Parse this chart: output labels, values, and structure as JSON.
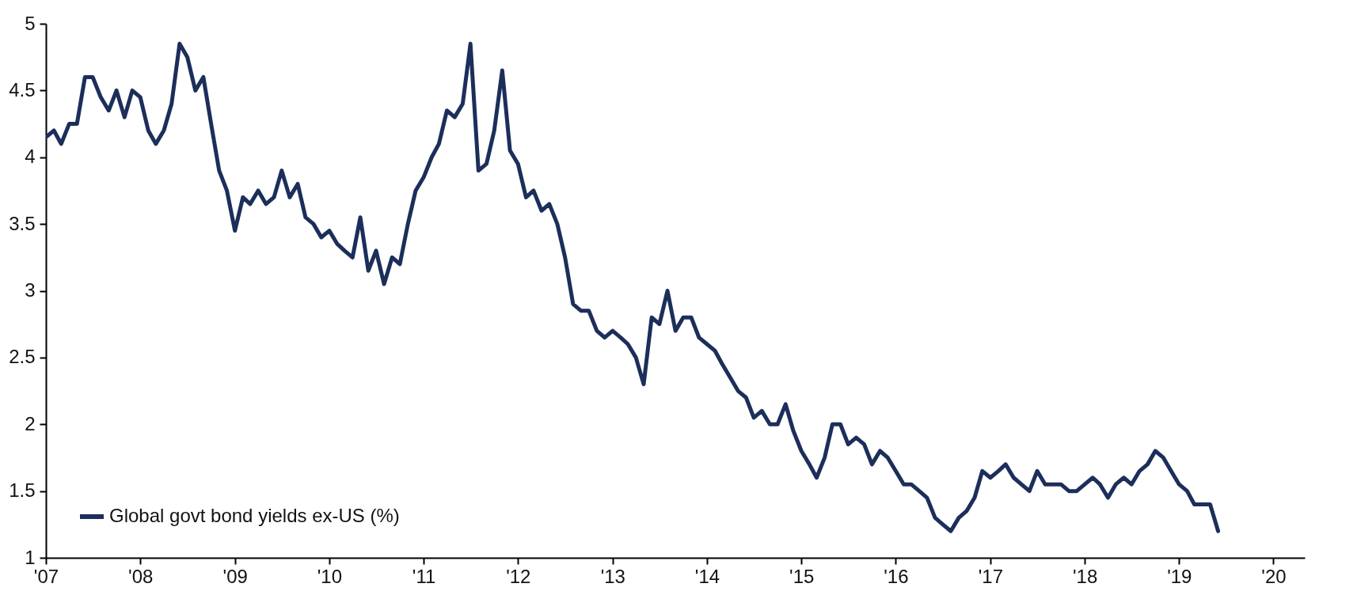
{
  "chart_data": {
    "type": "line",
    "x": [
      "2007-01",
      "2007-02",
      "2007-03",
      "2007-04",
      "2007-05",
      "2007-06",
      "2007-07",
      "2007-08",
      "2007-09",
      "2007-10",
      "2007-11",
      "2007-12",
      "2008-01",
      "2008-02",
      "2008-03",
      "2008-04",
      "2008-05",
      "2008-06",
      "2008-07",
      "2008-08",
      "2008-09",
      "2008-10",
      "2008-11",
      "2008-12",
      "2009-01",
      "2009-02",
      "2009-03",
      "2009-04",
      "2009-05",
      "2009-06",
      "2009-07",
      "2009-08",
      "2009-09",
      "2009-10",
      "2009-11",
      "2009-12",
      "2010-01",
      "2010-02",
      "2010-03",
      "2010-04",
      "2010-05",
      "2010-06",
      "2010-07",
      "2010-08",
      "2010-09",
      "2010-10",
      "2010-11",
      "2010-12",
      "2011-01",
      "2011-02",
      "2011-03",
      "2011-04",
      "2011-05",
      "2011-06",
      "2011-07",
      "2011-08",
      "2011-09",
      "2011-10",
      "2011-11",
      "2011-12",
      "2012-01",
      "2012-02",
      "2012-03",
      "2012-04",
      "2012-05",
      "2012-06",
      "2012-07",
      "2012-08",
      "2012-09",
      "2012-10",
      "2012-11",
      "2012-12",
      "2013-01",
      "2013-02",
      "2013-03",
      "2013-04",
      "2013-05",
      "2013-06",
      "2013-07",
      "2013-08",
      "2013-09",
      "2013-10",
      "2013-11",
      "2013-12",
      "2014-01",
      "2014-02",
      "2014-03",
      "2014-04",
      "2014-05",
      "2014-06",
      "2014-07",
      "2014-08",
      "2014-09",
      "2014-10",
      "2014-11",
      "2014-12",
      "2015-01",
      "2015-02",
      "2015-03",
      "2015-04",
      "2015-05",
      "2015-06",
      "2015-07",
      "2015-08",
      "2015-09",
      "2015-10",
      "2015-11",
      "2015-12",
      "2016-01",
      "2016-02",
      "2016-03",
      "2016-04",
      "2016-05",
      "2016-06",
      "2016-07",
      "2016-08",
      "2016-09",
      "2016-10",
      "2016-11",
      "2016-12",
      "2017-01",
      "2017-02",
      "2017-03",
      "2017-04",
      "2017-05",
      "2017-06",
      "2017-07",
      "2017-08",
      "2017-09",
      "2017-10",
      "2017-11",
      "2017-12",
      "2018-01",
      "2018-02",
      "2018-03",
      "2018-04",
      "2018-05",
      "2018-06",
      "2018-07",
      "2018-08",
      "2018-09",
      "2018-10",
      "2018-11",
      "2018-12",
      "2019-01",
      "2019-02",
      "2019-03",
      "2019-04",
      "2019-05",
      "2019-06"
    ],
    "series": [
      {
        "name": "Global govt bond yields ex-US (%)",
        "color": "#1c2e5a",
        "values": [
          4.15,
          4.2,
          4.1,
          4.25,
          4.25,
          4.6,
          4.6,
          4.45,
          4.35,
          4.5,
          4.3,
          4.5,
          4.45,
          4.2,
          4.1,
          4.2,
          4.4,
          4.85,
          4.75,
          4.5,
          4.6,
          4.25,
          3.9,
          3.75,
          3.45,
          3.7,
          3.65,
          3.75,
          3.65,
          3.7,
          3.9,
          3.7,
          3.8,
          3.55,
          3.5,
          3.4,
          3.45,
          3.35,
          3.3,
          3.25,
          3.55,
          3.15,
          3.3,
          3.05,
          3.25,
          3.2,
          3.5,
          3.75,
          3.85,
          4.0,
          4.1,
          4.35,
          4.3,
          4.4,
          4.85,
          3.9,
          3.95,
          4.2,
          4.65,
          4.05,
          3.95,
          3.7,
          3.75,
          3.6,
          3.65,
          3.5,
          3.25,
          2.9,
          2.85,
          2.85,
          2.7,
          2.65,
          2.7,
          2.65,
          2.6,
          2.5,
          2.3,
          2.8,
          2.75,
          3.0,
          2.7,
          2.8,
          2.8,
          2.65,
          2.6,
          2.55,
          2.45,
          2.35,
          2.25,
          2.2,
          2.05,
          2.1,
          2.0,
          2.0,
          2.15,
          1.95,
          1.8,
          1.7,
          1.6,
          1.75,
          2.0,
          2.0,
          1.85,
          1.9,
          1.85,
          1.7,
          1.8,
          1.75,
          1.65,
          1.55,
          1.55,
          1.5,
          1.45,
          1.3,
          1.25,
          1.2,
          1.3,
          1.35,
          1.45,
          1.65,
          1.6,
          1.65,
          1.7,
          1.6,
          1.55,
          1.5,
          1.65,
          1.55,
          1.55,
          1.55,
          1.5,
          1.5,
          1.55,
          1.6,
          1.55,
          1.45,
          1.55,
          1.6,
          1.55,
          1.65,
          1.7,
          1.8,
          1.75,
          1.65,
          1.55,
          1.5,
          1.4,
          1.4,
          1.4,
          1.2
        ]
      }
    ],
    "xlim": [
      "2007-01",
      "2020-05"
    ],
    "xticks": [
      {
        "value": "2007",
        "label": "'07"
      },
      {
        "value": "2008",
        "label": "'08"
      },
      {
        "value": "2009",
        "label": "'09"
      },
      {
        "value": "2010",
        "label": "'10"
      },
      {
        "value": "2011",
        "label": "'11"
      },
      {
        "value": "2012",
        "label": "'12"
      },
      {
        "value": "2013",
        "label": "'13"
      },
      {
        "value": "2014",
        "label": "'14"
      },
      {
        "value": "2015",
        "label": "'15"
      },
      {
        "value": "2016",
        "label": "'16"
      },
      {
        "value": "2017",
        "label": "'17"
      },
      {
        "value": "2018",
        "label": "'18"
      },
      {
        "value": "2019",
        "label": "'19"
      },
      {
        "value": "2020",
        "label": "'20"
      }
    ],
    "ylim": [
      1,
      5
    ],
    "yticks": [
      1,
      1.5,
      2,
      2.5,
      3,
      3.5,
      4,
      4.5,
      5
    ],
    "legend": "bottom left",
    "grid": false,
    "line_style": "solid",
    "marker": "none"
  }
}
